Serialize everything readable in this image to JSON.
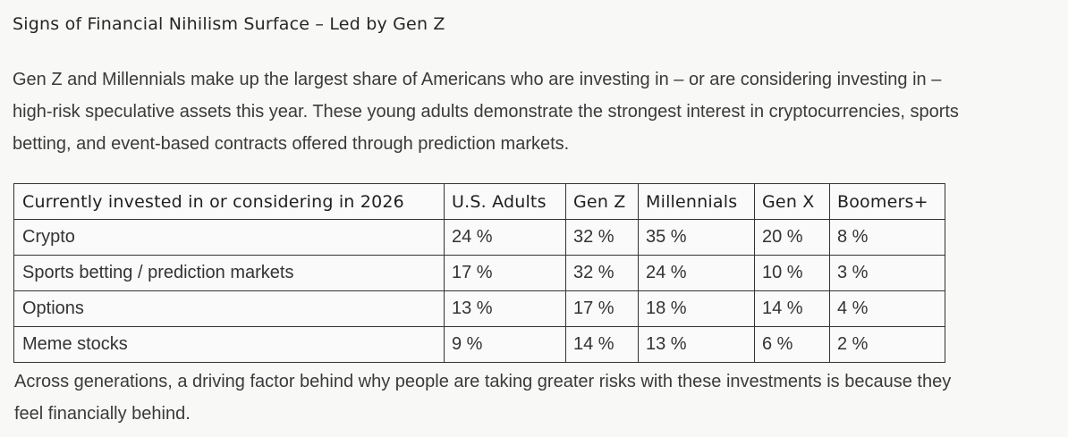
{
  "title": "Signs of Financial Nihilism Surface – Led by Gen Z",
  "intro": [
    "Gen Z and Millennials make up the largest share of Americans who are investing in – or are considering investing in –",
    "high-risk speculative assets this year. These young adults demonstrate the strongest interest in cryptocurrencies, sports",
    "betting, and event-based contracts offered through prediction markets."
  ],
  "table": {
    "headers": [
      "Currently invested in or considering in 2026",
      "U.S. Adults",
      "Gen Z",
      "Millennials",
      "Gen X",
      "Boomers+"
    ],
    "rows": [
      [
        "Crypto",
        "24 %",
        "32 %",
        "35 %",
        "20 %",
        "8 %"
      ],
      [
        "Sports betting / prediction markets",
        "17 %",
        "32 %",
        "24 %",
        "10 %",
        "3 %"
      ],
      [
        "Options",
        "13 %",
        "17 %",
        "18 %",
        "14 %",
        "4 %"
      ],
      [
        "Meme stocks",
        "9 %",
        "14 %",
        "13 %",
        "6 %",
        "2 %"
      ]
    ]
  },
  "outro": [
    "Across generations, a driving factor behind why people are taking greater risks with these investments is because they",
    "feel financially behind."
  ]
}
